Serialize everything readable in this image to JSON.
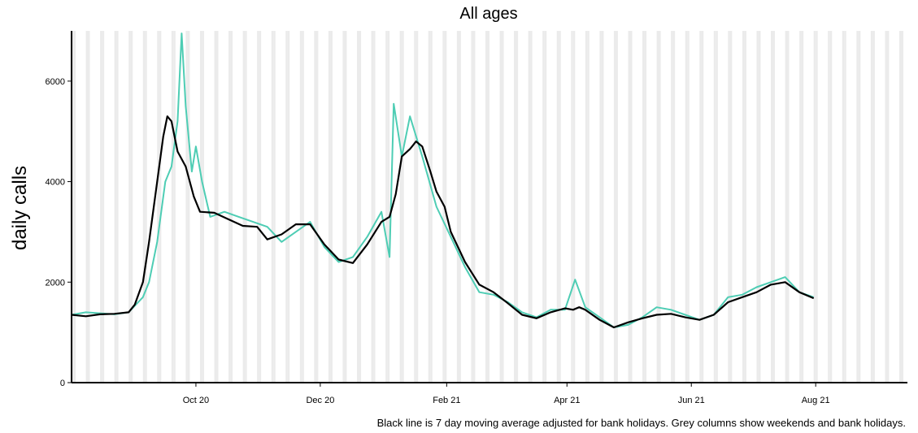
{
  "chart_data": {
    "type": "line",
    "title": "All ages",
    "xlabel": "",
    "ylabel": "daily calls",
    "caption": "Black line is 7 day moving average adjusted for bank holidays. Grey columns show weekends and bank holidays.",
    "x_range": [
      "2020-08-01",
      "2021-09-15"
    ],
    "ylim": [
      0,
      7000
    ],
    "y_ticks": [
      0,
      2000,
      4000,
      6000
    ],
    "x_ticks": [
      {
        "date": "2020-10-01",
        "label": "Oct 20"
      },
      {
        "date": "2020-12-01",
        "label": "Dec 20"
      },
      {
        "date": "2021-02-01",
        "label": "Feb 21"
      },
      {
        "date": "2021-04-01",
        "label": "Apr 21"
      },
      {
        "date": "2021-06-01",
        "label": "Jun 21"
      },
      {
        "date": "2021-08-01",
        "label": "Aug 21"
      }
    ],
    "grid": false,
    "shading": "weekends and bank holidays",
    "series": [
      {
        "role": "daily",
        "color": "#4ecdb4",
        "points": [
          [
            "2020-08-01",
            1350
          ],
          [
            "2020-08-08",
            1400
          ],
          [
            "2020-08-15",
            1380
          ],
          [
            "2020-08-22",
            1360
          ],
          [
            "2020-08-29",
            1400
          ],
          [
            "2020-09-05",
            1700
          ],
          [
            "2020-09-08",
            2000
          ],
          [
            "2020-09-12",
            2800
          ],
          [
            "2020-09-16",
            4000
          ],
          [
            "2020-09-19",
            4300
          ],
          [
            "2020-09-22",
            5200
          ],
          [
            "2020-09-24",
            6950
          ],
          [
            "2020-09-26",
            5500
          ],
          [
            "2020-09-29",
            4200
          ],
          [
            "2020-10-01",
            4700
          ],
          [
            "2020-10-04",
            4000
          ],
          [
            "2020-10-08",
            3300
          ],
          [
            "2020-10-15",
            3400
          ],
          [
            "2020-10-22",
            3300
          ],
          [
            "2020-10-29",
            3200
          ],
          [
            "2020-11-05",
            3100
          ],
          [
            "2020-11-12",
            2800
          ],
          [
            "2020-11-19",
            3000
          ],
          [
            "2020-11-26",
            3200
          ],
          [
            "2020-12-03",
            2700
          ],
          [
            "2020-12-10",
            2400
          ],
          [
            "2020-12-17",
            2500
          ],
          [
            "2020-12-24",
            2900
          ],
          [
            "2020-12-31",
            3400
          ],
          [
            "2021-01-04",
            2500
          ],
          [
            "2021-01-06",
            5550
          ],
          [
            "2021-01-10",
            4500
          ],
          [
            "2021-01-14",
            5300
          ],
          [
            "2021-01-20",
            4500
          ],
          [
            "2021-01-27",
            3500
          ],
          [
            "2021-02-03",
            2900
          ],
          [
            "2021-02-10",
            2300
          ],
          [
            "2021-02-17",
            1800
          ],
          [
            "2021-02-24",
            1750
          ],
          [
            "2021-03-03",
            1600
          ],
          [
            "2021-03-10",
            1400
          ],
          [
            "2021-03-17",
            1300
          ],
          [
            "2021-03-24",
            1450
          ],
          [
            "2021-03-31",
            1450
          ],
          [
            "2021-04-05",
            2050
          ],
          [
            "2021-04-10",
            1500
          ],
          [
            "2021-04-17",
            1300
          ],
          [
            "2021-04-24",
            1100
          ],
          [
            "2021-05-01",
            1150
          ],
          [
            "2021-05-08",
            1300
          ],
          [
            "2021-05-15",
            1500
          ],
          [
            "2021-05-22",
            1450
          ],
          [
            "2021-05-29",
            1350
          ],
          [
            "2021-06-05",
            1250
          ],
          [
            "2021-06-12",
            1350
          ],
          [
            "2021-06-19",
            1700
          ],
          [
            "2021-06-26",
            1750
          ],
          [
            "2021-07-03",
            1900
          ],
          [
            "2021-07-10",
            2000
          ],
          [
            "2021-07-17",
            2100
          ],
          [
            "2021-07-24",
            1800
          ],
          [
            "2021-07-31",
            1700
          ]
        ]
      },
      {
        "role": "7 day moving average",
        "color": "#000000",
        "points": [
          [
            "2020-08-01",
            1350
          ],
          [
            "2020-08-08",
            1320
          ],
          [
            "2020-08-15",
            1360
          ],
          [
            "2020-08-22",
            1370
          ],
          [
            "2020-08-29",
            1400
          ],
          [
            "2020-09-01",
            1550
          ],
          [
            "2020-09-05",
            2000
          ],
          [
            "2020-09-08",
            2800
          ],
          [
            "2020-09-12",
            4000
          ],
          [
            "2020-09-15",
            4900
          ],
          [
            "2020-09-17",
            5300
          ],
          [
            "2020-09-19",
            5200
          ],
          [
            "2020-09-22",
            4600
          ],
          [
            "2020-09-26",
            4300
          ],
          [
            "2020-09-30",
            3700
          ],
          [
            "2020-10-03",
            3400
          ],
          [
            "2020-10-10",
            3380
          ],
          [
            "2020-10-17",
            3250
          ],
          [
            "2020-10-24",
            3120
          ],
          [
            "2020-10-31",
            3100
          ],
          [
            "2020-11-05",
            2850
          ],
          [
            "2020-11-12",
            2950
          ],
          [
            "2020-11-19",
            3150
          ],
          [
            "2020-11-26",
            3150
          ],
          [
            "2020-12-03",
            2750
          ],
          [
            "2020-12-10",
            2450
          ],
          [
            "2020-12-17",
            2380
          ],
          [
            "2020-12-24",
            2750
          ],
          [
            "2020-12-31",
            3200
          ],
          [
            "2021-01-04",
            3300
          ],
          [
            "2021-01-07",
            3750
          ],
          [
            "2021-01-10",
            4500
          ],
          [
            "2021-01-14",
            4650
          ],
          [
            "2021-01-17",
            4800
          ],
          [
            "2021-01-20",
            4700
          ],
          [
            "2021-01-24",
            4200
          ],
          [
            "2021-01-27",
            3800
          ],
          [
            "2021-01-31",
            3500
          ],
          [
            "2021-02-03",
            3000
          ],
          [
            "2021-02-10",
            2400
          ],
          [
            "2021-02-17",
            1950
          ],
          [
            "2021-02-24",
            1800
          ],
          [
            "2021-03-03",
            1580
          ],
          [
            "2021-03-10",
            1350
          ],
          [
            "2021-03-17",
            1280
          ],
          [
            "2021-03-24",
            1400
          ],
          [
            "2021-03-31",
            1480
          ],
          [
            "2021-04-04",
            1450
          ],
          [
            "2021-04-07",
            1500
          ],
          [
            "2021-04-10",
            1450
          ],
          [
            "2021-04-17",
            1250
          ],
          [
            "2021-04-24",
            1100
          ],
          [
            "2021-05-01",
            1200
          ],
          [
            "2021-05-08",
            1280
          ],
          [
            "2021-05-15",
            1350
          ],
          [
            "2021-05-22",
            1370
          ],
          [
            "2021-05-29",
            1300
          ],
          [
            "2021-06-05",
            1250
          ],
          [
            "2021-06-12",
            1350
          ],
          [
            "2021-06-19",
            1600
          ],
          [
            "2021-06-26",
            1700
          ],
          [
            "2021-07-03",
            1800
          ],
          [
            "2021-07-10",
            1950
          ],
          [
            "2021-07-17",
            2000
          ],
          [
            "2021-07-24",
            1800
          ],
          [
            "2021-07-31",
            1680
          ]
        ]
      }
    ]
  }
}
